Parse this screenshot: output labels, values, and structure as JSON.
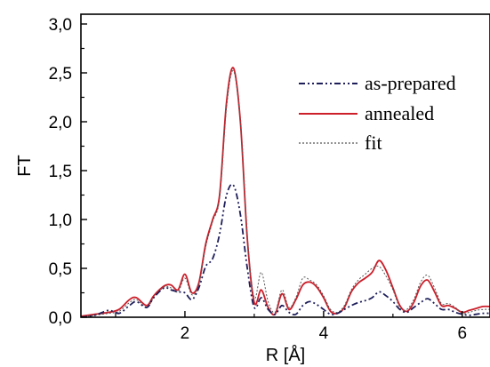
{
  "chart_data": {
    "type": "line",
    "title": "",
    "xlabel": "R [Å]",
    "ylabel": "FT",
    "xlim": [
      0.5,
      6.4
    ],
    "ylim": [
      0.0,
      3.1
    ],
    "x_ticks": [
      "2",
      "4",
      "6"
    ],
    "y_ticks": [
      "0,0",
      "0,5",
      "1,0",
      "1,5",
      "2,0",
      "2,5",
      "3,0"
    ],
    "grid": false,
    "legend_position": "top-right",
    "series": [
      {
        "name": "as-prepared",
        "color": "#1e1e5a",
        "dash": "dash-dot-dot",
        "x": [
          0.5,
          0.7,
          0.9,
          1.05,
          1.2,
          1.3,
          1.45,
          1.55,
          1.7,
          1.8,
          1.9,
          2.0,
          2.1,
          2.2,
          2.3,
          2.4,
          2.5,
          2.6,
          2.7,
          2.8,
          2.9,
          3.0,
          3.1,
          3.2,
          3.3,
          3.4,
          3.5,
          3.6,
          3.7,
          3.8,
          3.9,
          4.0,
          4.1,
          4.2,
          4.3,
          4.4,
          4.5,
          4.6,
          4.7,
          4.8,
          4.9,
          5.0,
          5.1,
          5.2,
          5.3,
          5.4,
          5.5,
          5.6,
          5.7,
          5.8,
          5.9,
          6.0,
          6.1,
          6.2,
          6.3,
          6.4
        ],
        "y": [
          0.0,
          0.02,
          0.07,
          0.04,
          0.12,
          0.16,
          0.1,
          0.2,
          0.3,
          0.28,
          0.26,
          0.25,
          0.18,
          0.3,
          0.52,
          0.6,
          0.85,
          1.25,
          1.35,
          1.05,
          0.5,
          0.1,
          0.2,
          0.08,
          0.03,
          0.12,
          0.05,
          0.03,
          0.12,
          0.16,
          0.13,
          0.08,
          0.03,
          0.04,
          0.08,
          0.12,
          0.15,
          0.17,
          0.2,
          0.26,
          0.22,
          0.16,
          0.08,
          0.05,
          0.1,
          0.15,
          0.19,
          0.14,
          0.08,
          0.08,
          0.05,
          0.03,
          0.02,
          0.03,
          0.04,
          0.04
        ]
      },
      {
        "name": "annealed",
        "color": "#cc1f2a",
        "dash": "solid",
        "x": [
          0.5,
          0.7,
          0.9,
          1.05,
          1.2,
          1.3,
          1.45,
          1.55,
          1.7,
          1.8,
          1.9,
          2.0,
          2.1,
          2.2,
          2.3,
          2.4,
          2.5,
          2.6,
          2.7,
          2.8,
          2.9,
          3.0,
          3.1,
          3.2,
          3.3,
          3.4,
          3.5,
          3.6,
          3.7,
          3.8,
          3.9,
          4.0,
          4.1,
          4.2,
          4.3,
          4.4,
          4.5,
          4.6,
          4.7,
          4.8,
          4.9,
          5.0,
          5.1,
          5.2,
          5.3,
          5.4,
          5.5,
          5.6,
          5.7,
          5.8,
          5.9,
          6.0,
          6.1,
          6.2,
          6.3,
          6.4
        ],
        "y": [
          0.01,
          0.03,
          0.05,
          0.08,
          0.18,
          0.2,
          0.12,
          0.22,
          0.32,
          0.33,
          0.28,
          0.44,
          0.25,
          0.35,
          0.75,
          1.0,
          1.25,
          2.2,
          2.55,
          2.0,
          0.8,
          0.15,
          0.28,
          0.1,
          0.03,
          0.24,
          0.08,
          0.18,
          0.33,
          0.36,
          0.31,
          0.2,
          0.06,
          0.04,
          0.1,
          0.26,
          0.35,
          0.4,
          0.46,
          0.58,
          0.48,
          0.3,
          0.12,
          0.06,
          0.15,
          0.32,
          0.38,
          0.26,
          0.12,
          0.12,
          0.09,
          0.05,
          0.07,
          0.09,
          0.11,
          0.11
        ]
      },
      {
        "name": "fit",
        "color": "#555555",
        "dash": "dotted",
        "x": [
          0.5,
          0.7,
          0.9,
          1.05,
          1.2,
          1.3,
          1.45,
          1.55,
          1.7,
          1.8,
          1.9,
          2.0,
          2.1,
          2.2,
          2.3,
          2.4,
          2.5,
          2.6,
          2.7,
          2.8,
          2.9,
          3.0,
          3.1,
          3.2,
          3.3,
          3.4,
          3.5,
          3.6,
          3.7,
          3.8,
          3.9,
          4.0,
          4.1,
          4.2,
          4.3,
          4.4,
          4.5,
          4.6,
          4.7,
          4.8,
          4.9,
          5.0,
          5.1,
          5.2,
          5.3,
          5.4,
          5.5,
          5.6,
          5.7,
          5.8,
          5.9,
          6.0,
          6.1,
          6.2,
          6.3,
          6.4
        ],
        "y": [
          0.0,
          0.02,
          0.04,
          0.06,
          0.15,
          0.18,
          0.1,
          0.2,
          0.31,
          0.3,
          0.26,
          0.4,
          0.23,
          0.33,
          0.72,
          0.98,
          1.22,
          2.15,
          2.52,
          1.98,
          0.82,
          0.2,
          0.46,
          0.16,
          0.05,
          0.28,
          0.1,
          0.2,
          0.4,
          0.38,
          0.33,
          0.22,
          0.08,
          0.05,
          0.12,
          0.28,
          0.38,
          0.44,
          0.5,
          0.52,
          0.42,
          0.28,
          0.1,
          0.08,
          0.18,
          0.36,
          0.43,
          0.3,
          0.14,
          0.14,
          0.1,
          0.04,
          0.05,
          0.07,
          0.08,
          0.08
        ]
      }
    ]
  }
}
